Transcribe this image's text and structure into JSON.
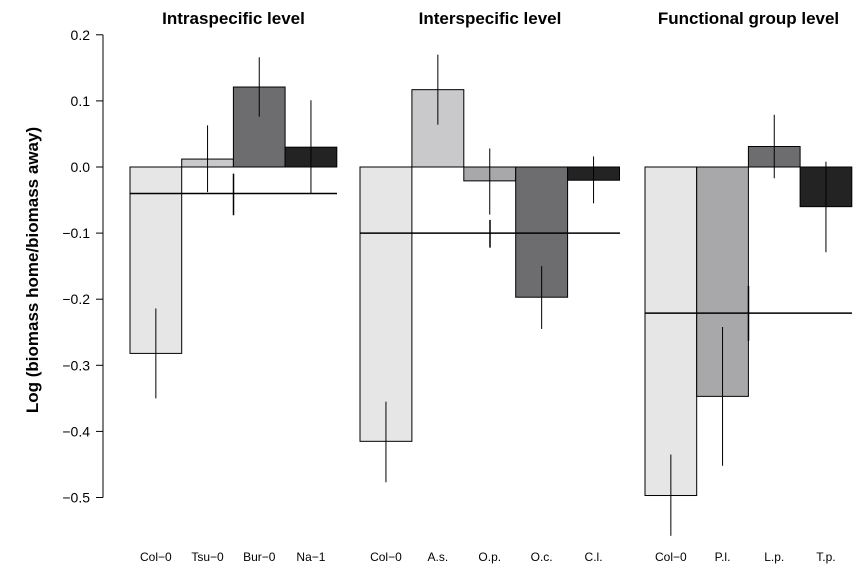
{
  "chart_data": {
    "type": "bar",
    "ylabel": "Log (biomass home/biomass away)",
    "ylim": [
      -0.55,
      0.2
    ],
    "yticks": [
      -0.5,
      -0.4,
      -0.3,
      -0.2,
      -0.1,
      0.0,
      0.1,
      0.2
    ],
    "ytick_labels": [
      "−0.5",
      "−0.4",
      "−0.3",
      "−0.2",
      "−0.1",
      "0.0",
      "0.1",
      "0.2"
    ],
    "panels": [
      {
        "title": "Intraspecific level",
        "categories": [
          "Col−0",
          "Tsu−0",
          "Bur−0",
          "Na−1"
        ],
        "values": [
          -0.282,
          0.012,
          0.121,
          0.03
        ],
        "error_low": [
          -0.35,
          -0.038,
          0.076,
          -0.04
        ],
        "error_high": [
          -0.214,
          0.063,
          0.166,
          0.101
        ],
        "colors": [
          "#e6e6e7",
          "#c9c9cb",
          "#6d6d6f",
          "#232323"
        ],
        "mean": -0.04,
        "mean_ci": [
          -0.073,
          -0.01
        ]
      },
      {
        "title": "Interspecific level",
        "categories": [
          "Col−0",
          "A.s.",
          "O.p.",
          "O.c.",
          "C.l."
        ],
        "values": [
          -0.415,
          0.117,
          -0.021,
          -0.197,
          -0.02
        ],
        "error_low": [
          -0.477,
          0.064,
          -0.072,
          -0.245,
          -0.055
        ],
        "error_high": [
          -0.355,
          0.17,
          0.028,
          -0.15,
          0.016
        ],
        "colors": [
          "#e6e6e7",
          "#c9c9cb",
          "#a8a8aa",
          "#6d6d6f",
          "#232323"
        ],
        "mean": -0.1,
        "mean_ci": [
          -0.122,
          -0.08
        ]
      },
      {
        "title": "Functional group level",
        "categories": [
          "Col−0",
          "P.l.",
          "L.p.",
          "T.p."
        ],
        "values": [
          -0.497,
          -0.347,
          0.031,
          -0.06
        ],
        "error_low": [
          -0.558,
          -0.452,
          -0.017,
          -0.129
        ],
        "error_high": [
          -0.435,
          -0.242,
          0.079,
          0.008
        ],
        "colors": [
          "#e6e6e7",
          "#a8a8aa",
          "#6d6d6f",
          "#232323"
        ],
        "mean": -0.221,
        "mean_ci": [
          -0.263,
          -0.18
        ]
      }
    ]
  }
}
